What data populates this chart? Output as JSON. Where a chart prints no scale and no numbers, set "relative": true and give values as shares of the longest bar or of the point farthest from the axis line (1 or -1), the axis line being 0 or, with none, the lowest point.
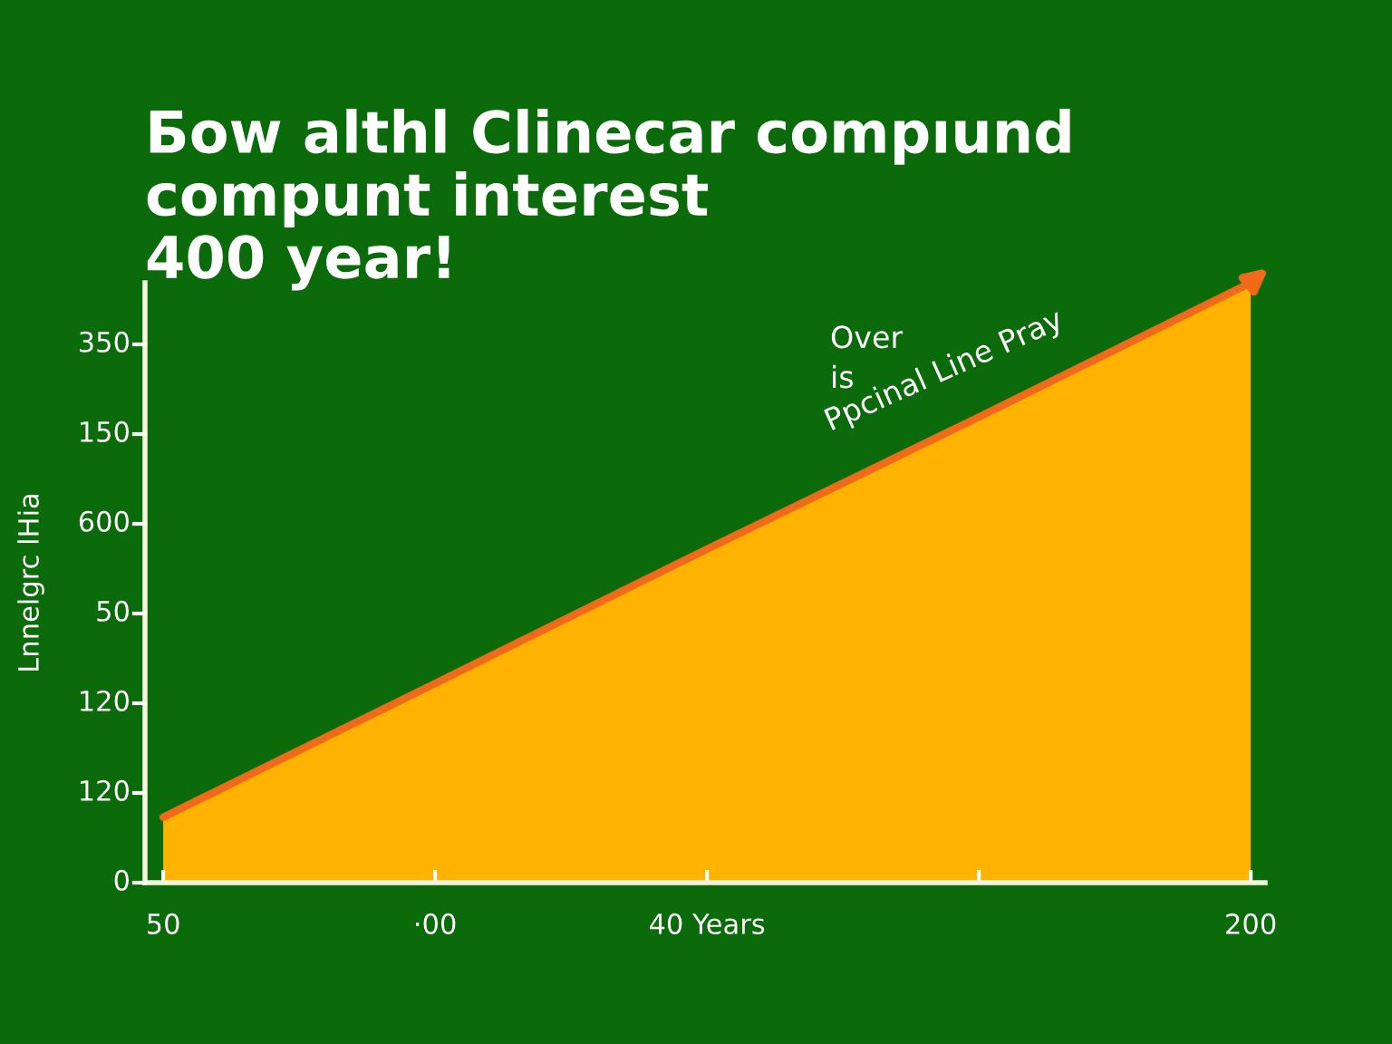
{
  "chart_data": {
    "type": "area",
    "title": "Бow althl Clinecar compıund\ncompunt interest\n400 year!",
    "ylabel": "Lnnelgrc lHia",
    "categories": [
      "50",
      "·00",
      "40 Years",
      null,
      "200"
    ],
    "relative": true,
    "series": [
      {
        "color": "#ffb300",
        "values": [
          0.109,
          0.332,
          0.556,
          0.776,
          1
        ]
      }
    ],
    "annotations": [
      "350",
      "150",
      "600",
      "50",
      "120",
      "120",
      "0",
      "Over",
      "is",
      "Ppcinal Line Pray"
    ],
    "grid": false,
    "legend": false
  }
}
